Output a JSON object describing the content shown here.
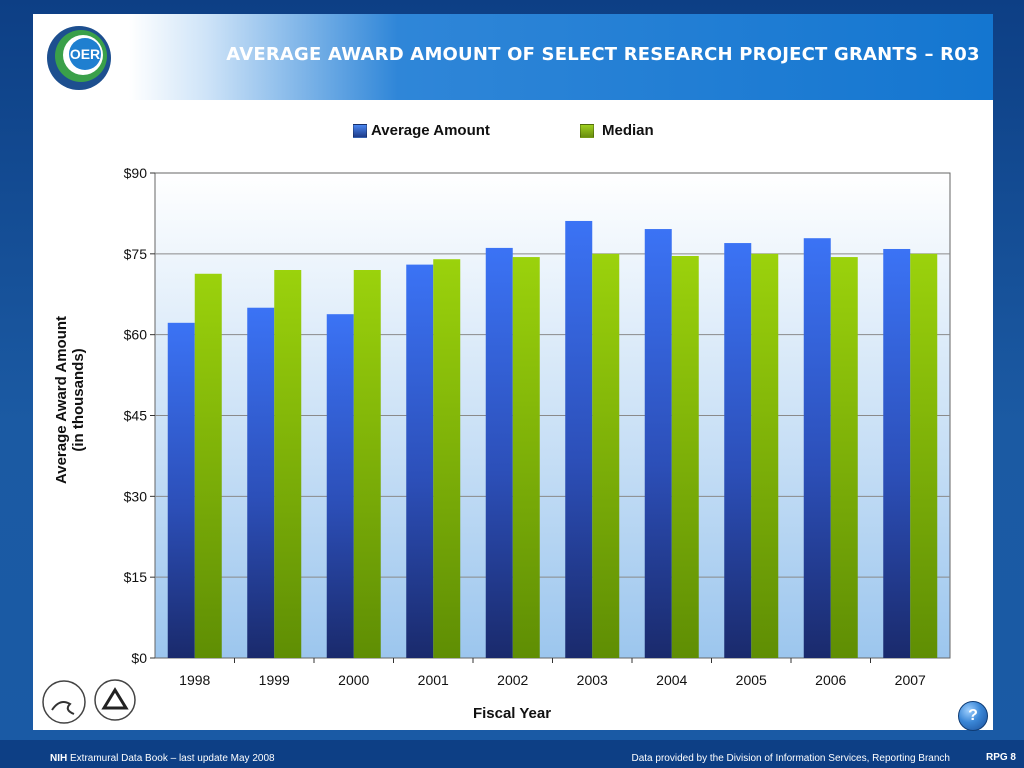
{
  "header": {
    "title": "AVERAGE AWARD AMOUNT OF SELECT RESEARCH PROJECT GRANTS   –  R03",
    "logo_text": "OER"
  },
  "footer": {
    "left_bold": "NIH",
    "left_text": " Extramural Data Book – last update May 2008",
    "right_text": "Data provided by the Division of Information Services, Reporting Branch",
    "page_label": "RPG 8",
    "help_label": "?"
  },
  "colors": {
    "average": "#3b6fe8",
    "median": "#8fc21d"
  },
  "chart_data": {
    "type": "bar",
    "categories": [
      "1998",
      "1999",
      "2000",
      "2001",
      "2002",
      "2003",
      "2004",
      "2005",
      "2006",
      "2007"
    ],
    "series": [
      {
        "name": "Average Amount",
        "values": [
          62.2,
          65.0,
          63.8,
          73.0,
          76.1,
          81.1,
          79.6,
          77.0,
          77.9,
          75.9
        ]
      },
      {
        "name": "Median",
        "values": [
          71.3,
          72.0,
          72.0,
          74.0,
          74.4,
          75.0,
          74.6,
          75.0,
          74.4,
          75.0
        ]
      }
    ],
    "xlabel": "Fiscal Year",
    "ylabel_line1": "Average Award Amount",
    "ylabel_line2": "(in thousands)",
    "ylim": [
      0,
      90
    ],
    "yticks": [
      0,
      15,
      30,
      45,
      60,
      75,
      90
    ],
    "ytick_labels": [
      "$0",
      "$15",
      "$30",
      "$45",
      "$60",
      "$75",
      "$90"
    ],
    "grid": true,
    "legend_position": "top"
  }
}
